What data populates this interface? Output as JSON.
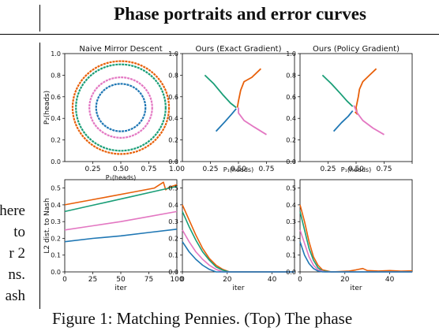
{
  "heading": "Phase portraits and error curves",
  "left_text": [
    "here",
    "to",
    "r 2",
    "ns.",
    "ash"
  ],
  "caption": "Figure 1: Matching Pennies. (Top) The phase",
  "colors": {
    "blue": "#1f77b4",
    "orange": "#e8600a",
    "green": "#1a9e77",
    "pink": "#e377c2",
    "pink_dark": "#d05aa8"
  },
  "top_panels": {
    "titles": [
      "Naive Mirror Descent",
      "Ours (Exact Gradient)",
      "Ours (Policy Gradient)"
    ],
    "xlabel": "P₁(heads)",
    "ylabel": "P₂(heads)",
    "ticks": [
      "0.0",
      "0.2",
      "0.4",
      "0.6",
      "0.8",
      "1.0"
    ],
    "xticks": [
      "0.25",
      "0.50",
      "0.75",
      "1.00"
    ],
    "xlim": [
      0.0,
      1.0
    ],
    "ylim": [
      0.0,
      1.0
    ]
  },
  "bottom_panels": {
    "ylabel": "L2 dist. to Nash",
    "xlabel": "iter",
    "yticks": [
      "0.0",
      "0.1",
      "0.2",
      "0.3",
      "0.4",
      "0.5"
    ],
    "xticks_first": [
      "0",
      "25",
      "50",
      "75",
      "100"
    ],
    "xticks_other": [
      "0",
      "20",
      "40"
    ],
    "ylim": [
      0.0,
      0.55
    ]
  },
  "chart_data": [
    {
      "type": "line",
      "title": "Naive Mirror Descent",
      "xlabel": "P₁(heads)",
      "ylabel": "P₂(heads)",
      "xlim": [
        0,
        1
      ],
      "ylim": [
        0,
        1
      ],
      "series": [
        {
          "color": "#e8600a",
          "shape": "circle",
          "center": [
            0.5,
            0.5
          ],
          "radius": 0.43
        },
        {
          "color": "#1a9e77",
          "shape": "circle",
          "center": [
            0.5,
            0.5
          ],
          "radius": 0.4
        },
        {
          "color": "#e377c2",
          "shape": "circle",
          "center": [
            0.5,
            0.5
          ],
          "radius": 0.28
        },
        {
          "color": "#1f77b4",
          "shape": "circle",
          "center": [
            0.5,
            0.5
          ],
          "radius": 0.22
        }
      ]
    },
    {
      "type": "line",
      "title": "Ours (Exact Gradient)",
      "xlabel": "P₁(heads)",
      "xlim": [
        0,
        1
      ],
      "ylim": [
        0,
        1
      ],
      "series": [
        {
          "color": "#e8600a",
          "points": [
            [
              0.7,
              0.86
            ],
            [
              0.62,
              0.78
            ],
            [
              0.55,
              0.74
            ],
            [
              0.52,
              0.66
            ],
            [
              0.5,
              0.56
            ],
            [
              0.49,
              0.5
            ]
          ]
        },
        {
          "color": "#1a9e77",
          "points": [
            [
              0.2,
              0.8
            ],
            [
              0.28,
              0.72
            ],
            [
              0.36,
              0.62
            ],
            [
              0.43,
              0.54
            ],
            [
              0.48,
              0.5
            ]
          ]
        },
        {
          "color": "#e377c2",
          "points": [
            [
              0.75,
              0.25
            ],
            [
              0.64,
              0.32
            ],
            [
              0.55,
              0.38
            ],
            [
              0.5,
              0.45
            ],
            [
              0.5,
              0.5
            ]
          ]
        },
        {
          "color": "#1f77b4",
          "points": [
            [
              0.3,
              0.28
            ],
            [
              0.38,
              0.37
            ],
            [
              0.44,
              0.44
            ],
            [
              0.48,
              0.49
            ]
          ]
        }
      ]
    },
    {
      "type": "line",
      "title": "Ours (Policy Gradient)",
      "xlabel": "P₁(heads)",
      "xlim": [
        0,
        1
      ],
      "ylim": [
        0,
        1
      ],
      "series": [
        {
          "color": "#e8600a",
          "points": [
            [
              0.68,
              0.86
            ],
            [
              0.62,
              0.8
            ],
            [
              0.56,
              0.74
            ],
            [
              0.53,
              0.67
            ],
            [
              0.52,
              0.6
            ],
            [
              0.5,
              0.5
            ],
            [
              0.51,
              0.44
            ],
            [
              0.49,
              0.46
            ]
          ]
        },
        {
          "color": "#1a9e77",
          "points": [
            [
              0.2,
              0.8
            ],
            [
              0.28,
              0.72
            ],
            [
              0.36,
              0.63
            ],
            [
              0.42,
              0.56
            ],
            [
              0.47,
              0.51
            ]
          ]
        },
        {
          "color": "#e377c2",
          "points": [
            [
              0.75,
              0.25
            ],
            [
              0.65,
              0.31
            ],
            [
              0.56,
              0.38
            ],
            [
              0.51,
              0.45
            ],
            [
              0.48,
              0.52
            ]
          ]
        },
        {
          "color": "#1f77b4",
          "points": [
            [
              0.3,
              0.28
            ],
            [
              0.37,
              0.36
            ],
            [
              0.43,
              0.42
            ],
            [
              0.47,
              0.47
            ]
          ]
        }
      ]
    },
    {
      "type": "line",
      "xlabel": "iter",
      "ylabel": "L2 dist. to Nash",
      "xlim": [
        0,
        100
      ],
      "ylim": [
        0,
        0.55
      ],
      "series": [
        {
          "color": "#e8600a",
          "points": [
            [
              0,
              0.4
            ],
            [
              20,
              0.425
            ],
            [
              40,
              0.45
            ],
            [
              60,
              0.475
            ],
            [
              80,
              0.5
            ],
            [
              88,
              0.535
            ],
            [
              90,
              0.49
            ],
            [
              93,
              0.505
            ],
            [
              100,
              0.52
            ]
          ]
        },
        {
          "color": "#1a9e77",
          "points": [
            [
              0,
              0.36
            ],
            [
              20,
              0.39
            ],
            [
              40,
              0.42
            ],
            [
              60,
              0.45
            ],
            [
              80,
              0.48
            ],
            [
              100,
              0.51
            ]
          ]
        },
        {
          "color": "#e377c2",
          "points": [
            [
              0,
              0.25
            ],
            [
              25,
              0.275
            ],
            [
              50,
              0.3
            ],
            [
              75,
              0.33
            ],
            [
              100,
              0.36
            ]
          ]
        },
        {
          "color": "#1f77b4",
          "points": [
            [
              0,
              0.18
            ],
            [
              25,
              0.2
            ],
            [
              50,
              0.215
            ],
            [
              75,
              0.235
            ],
            [
              100,
              0.255
            ]
          ]
        }
      ]
    },
    {
      "type": "line",
      "xlabel": "iter",
      "xlim": [
        0,
        50
      ],
      "ylim": [
        0,
        0.55
      ],
      "series": [
        {
          "color": "#e8600a",
          "points": [
            [
              0,
              0.4
            ],
            [
              3,
              0.31
            ],
            [
              6,
              0.22
            ],
            [
              9,
              0.14
            ],
            [
              12,
              0.08
            ],
            [
              15,
              0.04
            ],
            [
              18,
              0.015
            ],
            [
              21,
              0.0
            ],
            [
              50,
              0.0
            ]
          ]
        },
        {
          "color": "#1a9e77",
          "points": [
            [
              0,
              0.36
            ],
            [
              3,
              0.27
            ],
            [
              6,
              0.19
            ],
            [
              9,
              0.12
            ],
            [
              12,
              0.07
            ],
            [
              15,
              0.03
            ],
            [
              18,
              0.01
            ],
            [
              21,
              0.0
            ],
            [
              50,
              0.0
            ]
          ]
        },
        {
          "color": "#e377c2",
          "points": [
            [
              0,
              0.25
            ],
            [
              3,
              0.18
            ],
            [
              6,
              0.12
            ],
            [
              9,
              0.075
            ],
            [
              12,
              0.04
            ],
            [
              15,
              0.015
            ],
            [
              18,
              0.0
            ],
            [
              50,
              0.0
            ]
          ]
        },
        {
          "color": "#1f77b4",
          "points": [
            [
              0,
              0.18
            ],
            [
              3,
              0.12
            ],
            [
              6,
              0.075
            ],
            [
              9,
              0.04
            ],
            [
              12,
              0.015
            ],
            [
              15,
              0.0
            ],
            [
              50,
              0.0
            ]
          ]
        }
      ]
    },
    {
      "type": "line",
      "xlabel": "iter",
      "xlim": [
        0,
        50
      ],
      "ylim": [
        0,
        0.55
      ],
      "series": [
        {
          "color": "#e8600a",
          "points": [
            [
              0,
              0.4
            ],
            [
              2,
              0.3
            ],
            [
              4,
              0.18
            ],
            [
              6,
              0.09
            ],
            [
              8,
              0.04
            ],
            [
              10,
              0.012
            ],
            [
              14,
              0.0
            ],
            [
              22,
              0.005
            ],
            [
              25,
              0.012
            ],
            [
              28,
              0.02
            ],
            [
              30,
              0.008
            ],
            [
              35,
              0.005
            ],
            [
              40,
              0.008
            ],
            [
              45,
              0.004
            ],
            [
              50,
              0.006
            ]
          ]
        },
        {
          "color": "#1a9e77",
          "points": [
            [
              0,
              0.36
            ],
            [
              2,
              0.25
            ],
            [
              4,
              0.14
            ],
            [
              6,
              0.07
            ],
            [
              8,
              0.025
            ],
            [
              10,
              0.005
            ],
            [
              14,
              0.0
            ],
            [
              50,
              0.0
            ]
          ]
        },
        {
          "color": "#e377c2",
          "points": [
            [
              0,
              0.25
            ],
            [
              2,
              0.17
            ],
            [
              4,
              0.09
            ],
            [
              6,
              0.04
            ],
            [
              8,
              0.012
            ],
            [
              11,
              0.0
            ],
            [
              50,
              0.0
            ]
          ]
        },
        {
          "color": "#1f77b4",
          "points": [
            [
              0,
              0.18
            ],
            [
              2,
              0.1
            ],
            [
              4,
              0.05
            ],
            [
              6,
              0.02
            ],
            [
              8,
              0.005
            ],
            [
              10,
              0.0
            ],
            [
              50,
              0.0
            ]
          ]
        }
      ]
    }
  ]
}
